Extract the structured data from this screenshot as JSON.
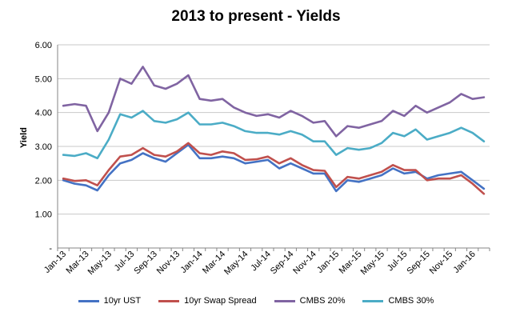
{
  "chart_data": {
    "type": "line",
    "title": "2013 to present - Yields",
    "xlabel": "",
    "ylabel": "Yield",
    "ylim": [
      0,
      6
    ],
    "yticks": [
      "-",
      "1.00",
      "2.00",
      "3.00",
      "4.00",
      "5.00",
      "6.00"
    ],
    "grid": true,
    "legend_position": "bottom",
    "x": [
      "Jan-13",
      "Feb-13",
      "Mar-13",
      "Apr-13",
      "May-13",
      "Jun-13",
      "Jul-13",
      "Aug-13",
      "Sep-13",
      "Oct-13",
      "Nov-13",
      "Dec-13",
      "Jan-14",
      "Feb-14",
      "Mar-14",
      "Apr-14",
      "May-14",
      "Jun-14",
      "Jul-14",
      "Aug-14",
      "Sep-14",
      "Oct-14",
      "Nov-14",
      "Dec-14",
      "Jan-15",
      "Feb-15",
      "Mar-15",
      "Apr-15",
      "May-15",
      "Jun-15",
      "Jul-15",
      "Aug-15",
      "Sep-15",
      "Oct-15",
      "Nov-15",
      "Dec-15",
      "Jan-16",
      "Feb-16"
    ],
    "x_tick_labels": [
      "Jan-13",
      "Mar-13",
      "May-13",
      "Jul-13",
      "Sep-13",
      "Nov-13",
      "Jan-14",
      "Mar-14",
      "May-14",
      "Jul-14",
      "Sep-14",
      "Nov-14",
      "Jan-15",
      "Mar-15",
      "May-15",
      "Jul-15",
      "Sep-15",
      "Nov-15",
      "Jan-16"
    ],
    "series": [
      {
        "name": "10yr UST",
        "color": "#4472c4",
        "values": [
          2.0,
          1.9,
          1.85,
          1.7,
          2.15,
          2.5,
          2.6,
          2.8,
          2.65,
          2.55,
          2.8,
          3.05,
          2.65,
          2.65,
          2.7,
          2.65,
          2.5,
          2.55,
          2.6,
          2.35,
          2.5,
          2.35,
          2.2,
          2.2,
          1.68,
          2.0,
          1.95,
          2.05,
          2.15,
          2.35,
          2.2,
          2.25,
          2.05,
          2.15,
          2.2,
          2.25,
          2.0,
          1.75
        ]
      },
      {
        "name": "10yr Swap Spread",
        "color": "#c0504d",
        "values": [
          2.05,
          1.98,
          2.0,
          1.85,
          2.3,
          2.7,
          2.75,
          2.95,
          2.75,
          2.7,
          2.85,
          3.1,
          2.8,
          2.75,
          2.85,
          2.8,
          2.6,
          2.62,
          2.7,
          2.5,
          2.65,
          2.45,
          2.3,
          2.28,
          1.8,
          2.1,
          2.05,
          2.15,
          2.25,
          2.45,
          2.3,
          2.3,
          2.0,
          2.05,
          2.05,
          2.15,
          1.9,
          1.6
        ]
      },
      {
        "name": "CMBS 20%",
        "color": "#8064a2",
        "values": [
          4.2,
          4.25,
          4.2,
          3.45,
          4.0,
          5.0,
          4.85,
          5.35,
          4.8,
          4.7,
          4.85,
          5.1,
          4.4,
          4.35,
          4.4,
          4.15,
          4.0,
          3.9,
          3.95,
          3.85,
          4.05,
          3.9,
          3.7,
          3.75,
          3.3,
          3.6,
          3.55,
          3.65,
          3.75,
          4.05,
          3.9,
          4.2,
          4.0,
          4.15,
          4.3,
          4.55,
          4.4,
          4.45
        ]
      },
      {
        "name": "CMBS 30%",
        "color": "#4bacc6",
        "values": [
          2.75,
          2.72,
          2.8,
          2.65,
          3.2,
          3.95,
          3.85,
          4.05,
          3.75,
          3.7,
          3.8,
          4.0,
          3.65,
          3.65,
          3.7,
          3.6,
          3.45,
          3.4,
          3.4,
          3.35,
          3.45,
          3.35,
          3.15,
          3.15,
          2.75,
          2.95,
          2.9,
          2.95,
          3.1,
          3.4,
          3.3,
          3.5,
          3.2,
          3.3,
          3.4,
          3.55,
          3.4,
          3.15
        ]
      }
    ]
  }
}
